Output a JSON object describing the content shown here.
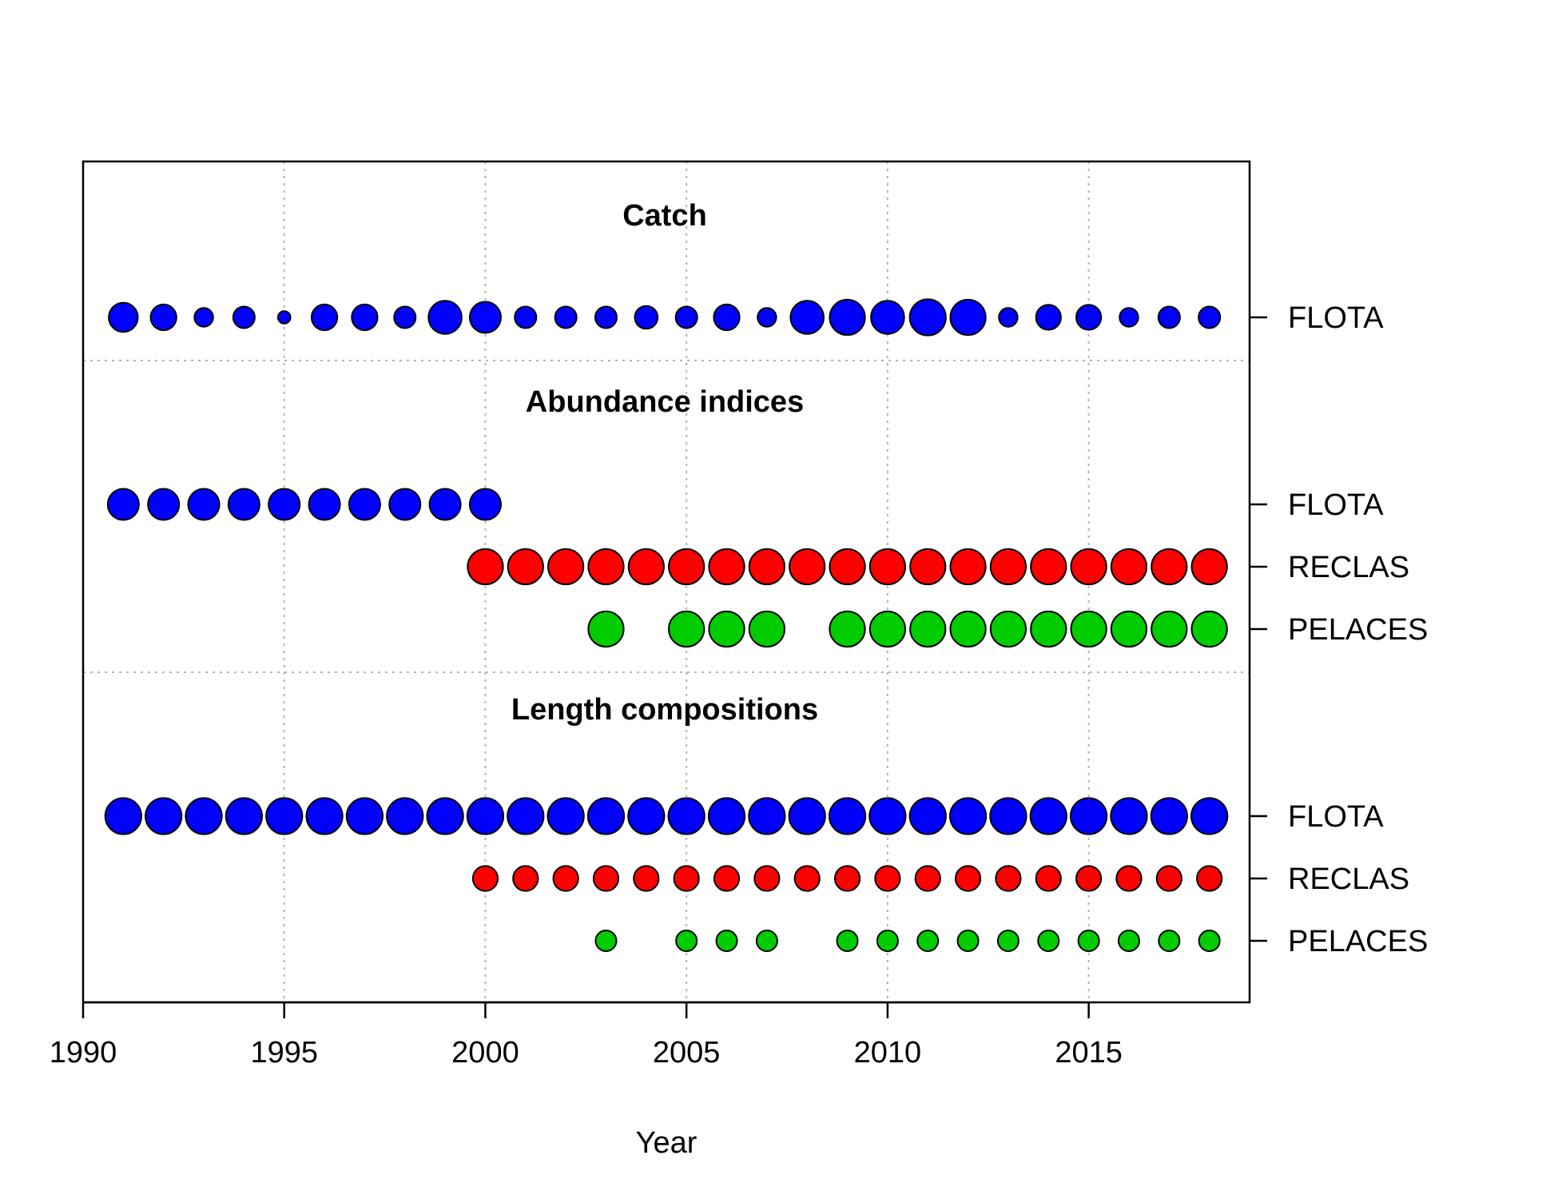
{
  "chart_data": {
    "type": "scatter",
    "xlabel": "Year",
    "xlim": [
      1990,
      2019
    ],
    "x_ticks": [
      1990,
      1995,
      2000,
      2005,
      2010,
      2015
    ],
    "grid": true,
    "colors": {
      "FLOTA": "#0000ff",
      "RECLAS": "#ff0000",
      "PELACES": "#00cc00"
    },
    "sections": [
      {
        "title": "Catch",
        "series": [
          {
            "name": "FLOTA",
            "color": "FLOTA",
            "x": [
              1991,
              1992,
              1993,
              1994,
              1995,
              1996,
              1997,
              1998,
              1999,
              2000,
              2001,
              2002,
              2003,
              2004,
              2005,
              2006,
              2007,
              2008,
              2009,
              2010,
              2011,
              2012,
              2013,
              2014,
              2015,
              2016,
              2017,
              2018
            ],
            "size": [
              0.7,
              0.62,
              0.45,
              0.52,
              0.3,
              0.62,
              0.62,
              0.52,
              0.8,
              0.75,
              0.52,
              0.52,
              0.52,
              0.55,
              0.52,
              0.62,
              0.45,
              0.8,
              0.85,
              0.8,
              0.87,
              0.85,
              0.45,
              0.6,
              0.6,
              0.45,
              0.52,
              0.52
            ]
          }
        ]
      },
      {
        "title": "Abundance indices",
        "series": [
          {
            "name": "FLOTA",
            "color": "FLOTA",
            "x": [
              1991,
              1992,
              1993,
              1994,
              1995,
              1996,
              1997,
              1998,
              1999,
              2000
            ],
            "size": [
              0.75,
              0.75,
              0.75,
              0.75,
              0.75,
              0.75,
              0.75,
              0.75,
              0.75,
              0.75
            ]
          },
          {
            "name": "RECLAS",
            "color": "RECLAS",
            "x": [
              2000,
              2001,
              2002,
              2003,
              2004,
              2005,
              2006,
              2007,
              2008,
              2009,
              2010,
              2011,
              2012,
              2013,
              2014,
              2015,
              2016,
              2017,
              2018
            ],
            "size": [
              0.85,
              0.85,
              0.85,
              0.85,
              0.85,
              0.85,
              0.85,
              0.85,
              0.85,
              0.85,
              0.85,
              0.85,
              0.85,
              0.85,
              0.85,
              0.85,
              0.85,
              0.85,
              0.85
            ]
          },
          {
            "name": "PELACES",
            "color": "PELACES",
            "x": [
              2003,
              2005,
              2006,
              2007,
              2009,
              2010,
              2011,
              2012,
              2013,
              2014,
              2015,
              2016,
              2017,
              2018
            ],
            "size": [
              0.85,
              0.85,
              0.85,
              0.85,
              0.85,
              0.85,
              0.85,
              0.85,
              0.85,
              0.85,
              0.85,
              0.85,
              0.85,
              0.85
            ]
          }
        ]
      },
      {
        "title": "Length compositions",
        "series": [
          {
            "name": "FLOTA",
            "color": "FLOTA",
            "x": [
              1991,
              1992,
              1993,
              1994,
              1995,
              1996,
              1997,
              1998,
              1999,
              2000,
              2001,
              2002,
              2003,
              2004,
              2005,
              2006,
              2007,
              2008,
              2009,
              2010,
              2011,
              2012,
              2013,
              2014,
              2015,
              2016,
              2017,
              2018
            ],
            "size": [
              0.87,
              0.87,
              0.87,
              0.87,
              0.87,
              0.87,
              0.87,
              0.87,
              0.87,
              0.87,
              0.87,
              0.87,
              0.87,
              0.87,
              0.87,
              0.87,
              0.87,
              0.87,
              0.87,
              0.87,
              0.87,
              0.87,
              0.87,
              0.87,
              0.87,
              0.87,
              0.87,
              0.87
            ]
          },
          {
            "name": "RECLAS",
            "color": "RECLAS",
            "x": [
              2000,
              2001,
              2002,
              2003,
              2004,
              2005,
              2006,
              2007,
              2008,
              2009,
              2010,
              2011,
              2012,
              2013,
              2014,
              2015,
              2016,
              2017,
              2018
            ],
            "size": [
              0.6,
              0.6,
              0.6,
              0.6,
              0.6,
              0.6,
              0.6,
              0.6,
              0.6,
              0.6,
              0.6,
              0.6,
              0.6,
              0.6,
              0.6,
              0.6,
              0.6,
              0.6,
              0.6
            ]
          },
          {
            "name": "PELACES",
            "color": "PELACES",
            "x": [
              2003,
              2005,
              2006,
              2007,
              2009,
              2010,
              2011,
              2012,
              2013,
              2014,
              2015,
              2016,
              2017,
              2018
            ],
            "size": [
              0.5,
              0.5,
              0.5,
              0.5,
              0.5,
              0.5,
              0.5,
              0.5,
              0.5,
              0.5,
              0.5,
              0.5,
              0.5,
              0.5
            ]
          }
        ]
      }
    ]
  }
}
